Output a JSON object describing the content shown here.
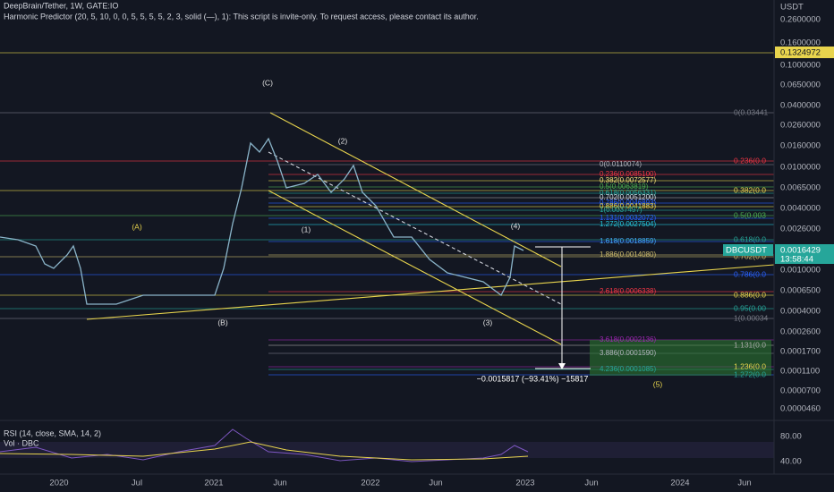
{
  "header": {
    "title": "DeepBrain/Tether, 1W, GATE:IO",
    "indicator": "Harmonic Predictor (20, 5, 10, 0, 0, 5, 5, 5, 5, 2, 3, solid (—), 1): This script is invite-only. To request access, please contact its author."
  },
  "price_axis": {
    "unit": "USDT",
    "labels": [
      "0.2600000",
      "0.1600000",
      "0.1000000",
      "0.0650000",
      "0.0400000",
      "0.0260000",
      "0.0160000",
      "0.0100000",
      "0.0065000",
      "0.0040000",
      "0.0026000",
      "0.0010000",
      "0.0006500",
      "0.0004000",
      "0.0002600",
      "0.0001700",
      "0.0001100",
      "0.0000700",
      "0.0000460"
    ],
    "highlight": "0.1324972",
    "symbol": "DBCUSDT",
    "current_price": "0.0016429",
    "countdown": "13:58:44"
  },
  "rsi_axis": [
    "80.00",
    "40.00"
  ],
  "time_axis": [
    "2020",
    "Jul",
    "2021",
    "Jun",
    "2022",
    "Jun",
    "2023",
    "Jun",
    "2024",
    "Jun"
  ],
  "indicators": {
    "rsi": "RSI (14, close, SMA, 14, 2)",
    "volume": "Vol · DBC"
  },
  "fib_right": [
    "0(0.03441",
    "0.236(0.0",
    "0.382(0.0",
    "0.5(0.003",
    "0.618(0.0",
    "0.702(0.0",
    "0.786(0.0",
    "0.886(0.0",
    "0.95(0.00",
    "1(0.00034",
    "1.131(0.0",
    "1.236(0.0",
    "1.272(0.0"
  ],
  "fib_mid": [
    "0(0.0110074)",
    "0.236(0.0085100)",
    "0.382(0.0072577)",
    "0.5(0.0063819)",
    "0.618(0.0056331)",
    "0.702(0.0051200)",
    "0.786(0.0046893)",
    "0.886(0.0041883)",
    "1(0.0037497)",
    "1.131(0.0032072)",
    "1.272(0.0027504)",
    "1.618(0.0018859)",
    "1.886(0.0014080)",
    "2.618(0.0006338)",
    "3.618(0.0002136)",
    "3.886(0.0001590)",
    "4.236(0.0001085)"
  ],
  "waves": [
    "(C)",
    "(2)",
    "(A)",
    "(1)",
    "(4)",
    "(B)",
    "(3)",
    "(5)"
  ],
  "measure": "−0.0015817 (−93.41%) −15817"
}
